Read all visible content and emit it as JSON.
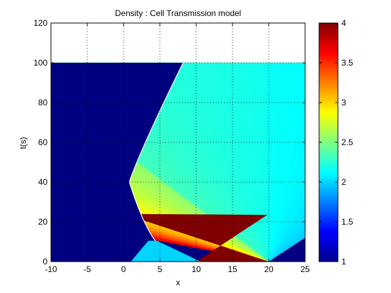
{
  "chart_data": {
    "type": "heatmap",
    "title": "Density : Cell Transmission model",
    "xlabel": "x",
    "ylabel": "t(s)",
    "xlim": [
      -10,
      25
    ],
    "ylim": [
      0,
      120
    ],
    "xticks": [
      "-10",
      "-5",
      "0",
      "5",
      "10",
      "15",
      "20",
      "25"
    ],
    "yticks": [
      "0",
      "20",
      "40",
      "60",
      "80",
      "100",
      "120"
    ],
    "grid": true,
    "colormap": "jet",
    "clim": [
      1,
      4
    ],
    "colorbar_ticks": [
      "1",
      "1.5",
      "2",
      "2.5",
      "3",
      "3.5",
      "4"
    ],
    "data_extent": {
      "x": [
        -10,
        25
      ],
      "t": [
        0,
        100
      ]
    },
    "regions": [
      {
        "region": "left of shock",
        "density": 1
      },
      {
        "region": "initial high-density block x 10 to 20",
        "density": 4
      },
      {
        "region": "right of x 20",
        "density": 1
      },
      {
        "region": "wedge between x 1 and x 10 at t 0",
        "density": 2
      },
      {
        "region": "rarefaction fan centred at x 20, t 0",
        "density_range": [
          2,
          4
        ]
      }
    ]
  },
  "colors": {
    "background": "#ffffff",
    "low": "#00008f",
    "high": "#800000"
  }
}
